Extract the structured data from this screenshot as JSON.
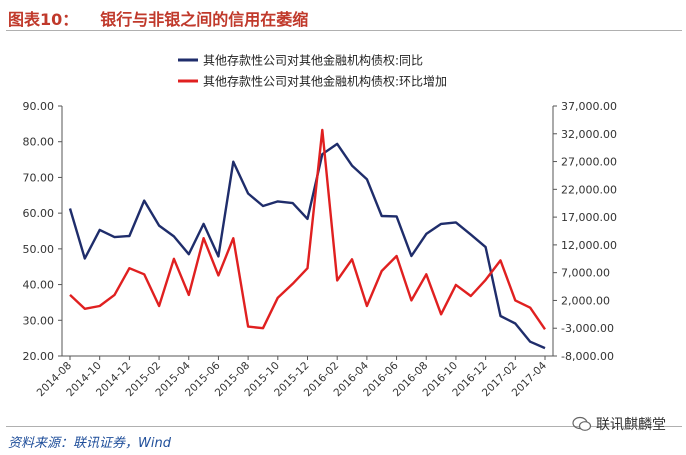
{
  "header": {
    "figure_label": "图表10：",
    "title": "银行与非银之间的信用在萎缩"
  },
  "footer": {
    "source": "资料来源：联讯证券，Wind",
    "watermark": "联讯麒麟堂"
  },
  "colors": {
    "title": "#c0392b",
    "yoy_series": "#1f2d6b",
    "mom_series": "#e02020",
    "source_text": "#1f4e9a"
  },
  "chart_data": {
    "type": "line",
    "title": "",
    "x_tick_labels": [
      "2014-08",
      "2014-10",
      "2014-12",
      "2015-02",
      "2015-04",
      "2015-06",
      "2015-08",
      "2015-10",
      "2015-12",
      "2016-02",
      "2016-04",
      "2016-06",
      "2016-08",
      "2016-10",
      "2016-12",
      "2017-02",
      "2017-04"
    ],
    "left_axis": {
      "min": 20,
      "max": 90,
      "ticks": [
        "20.00",
        "30.00",
        "40.00",
        "50.00",
        "60.00",
        "70.00",
        "80.00",
        "90.00"
      ]
    },
    "right_axis": {
      "min": -8000,
      "max": 37000,
      "ticks": [
        "-8,000.00",
        "-3,000.00",
        "2,000.00",
        "7,000.00",
        "12,000.00",
        "17,000.00",
        "22,000.00",
        "27,000.00",
        "32,000.00",
        "37,000.00"
      ]
    },
    "legend_position": "top-center",
    "series": [
      {
        "name": "其他存款性公司对其他金融机构债权:同比",
        "axis": "left",
        "color": "#1f2d6b",
        "values": [
          61.3,
          47.3,
          55.3,
          53.3,
          53.6,
          63.5,
          56.5,
          53.5,
          48.5,
          57.0,
          47.9,
          74.4,
          65.5,
          62.0,
          63.3,
          62.8,
          58.4,
          76.5,
          79.4,
          73.3,
          69.5,
          59.2,
          59.1,
          48.0,
          54.2,
          57.0,
          57.4,
          54.0,
          50.5,
          31.2,
          29.1,
          24.0,
          22.2
        ]
      },
      {
        "name": "其他存款性公司对其他金融机构债权:环比增加",
        "axis": "right",
        "color": "#e02020",
        "values": [
          3000,
          500,
          1000,
          3000,
          7800,
          6700,
          1000,
          9500,
          3000,
          13200,
          6500,
          13200,
          -2700,
          -3000,
          2500,
          5000,
          7800,
          32700,
          5600,
          9400,
          1000,
          7300,
          10000,
          2000,
          6700,
          -500,
          4800,
          2800,
          5700,
          9200,
          2000,
          700,
          -3200
        ]
      }
    ]
  }
}
